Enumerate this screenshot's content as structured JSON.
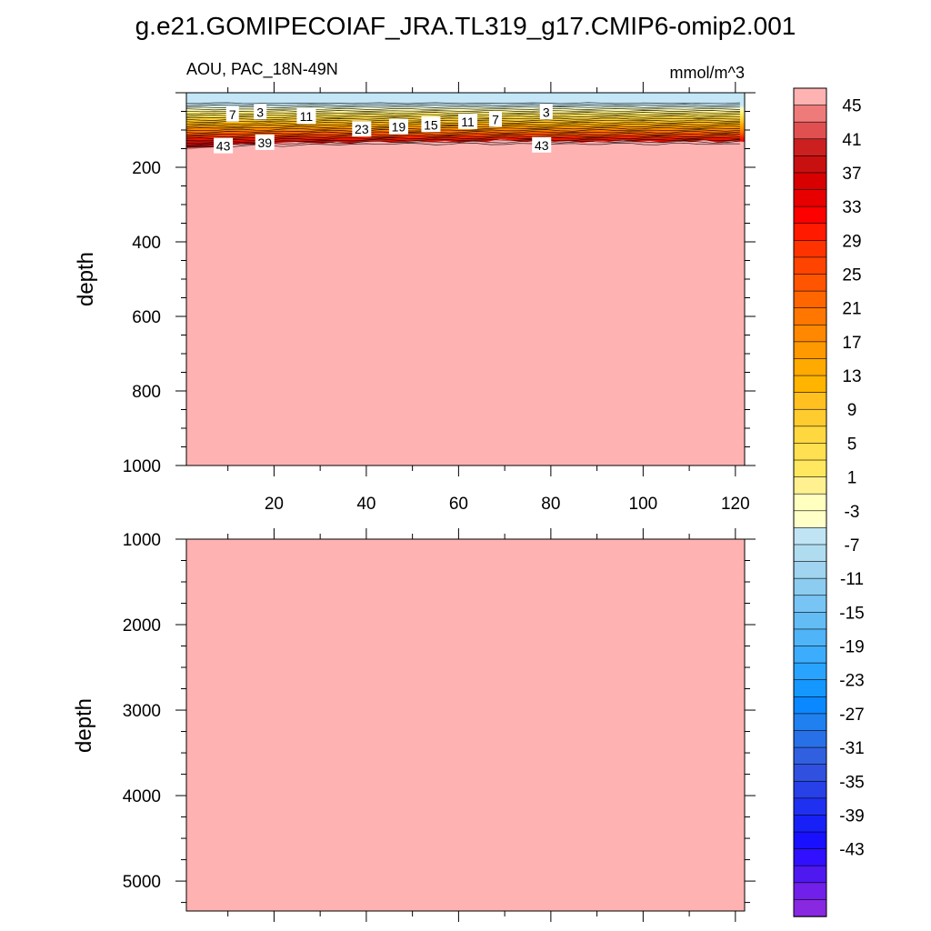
{
  "page_title": "g.e21.GOMIPECOIAF_JRA.TL319_g17.CMIP6-omip2.001",
  "chart_data": [
    {
      "type": "heatmap",
      "panel": "upper",
      "title_left": "AOU, PAC_18N-49N",
      "title_right": "mmol/m^3",
      "ylabel": "depth",
      "xlim": [
        1,
        122
      ],
      "ylim": [
        1000,
        0
      ],
      "x_ticks": [
        20,
        40,
        60,
        80,
        100,
        120
      ],
      "y_ticks": [
        200,
        400,
        600,
        800,
        1000
      ],
      "deep_value_color": "#ffb2b2",
      "contour_labels": [
        {
          "text": "7",
          "x": 11,
          "depth": 58
        },
        {
          "text": "3",
          "x": 17,
          "depth": 52
        },
        {
          "text": "11",
          "x": 27,
          "depth": 64
        },
        {
          "text": "43",
          "x": 9,
          "depth": 143
        },
        {
          "text": "39",
          "x": 18,
          "depth": 134
        },
        {
          "text": "23",
          "x": 39,
          "depth": 98
        },
        {
          "text": "19",
          "x": 47,
          "depth": 92
        },
        {
          "text": "15",
          "x": 54,
          "depth": 86
        },
        {
          "text": "11",
          "x": 62,
          "depth": 78
        },
        {
          "text": "7",
          "x": 68,
          "depth": 72
        },
        {
          "text": "3",
          "x": 79,
          "depth": 52
        },
        {
          "text": "43",
          "x": 78,
          "depth": 141
        }
      ]
    },
    {
      "type": "heatmap",
      "panel": "lower",
      "ylabel": "depth",
      "xlim": [
        1,
        122
      ],
      "ylim": [
        5350,
        1000
      ],
      "y_ticks": [
        1000,
        2000,
        3000,
        4000,
        5000
      ],
      "deep_value_color": "#ffb2b2"
    }
  ],
  "colorbar": {
    "labels": [
      "45",
      "41",
      "37",
      "33",
      "29",
      "25",
      "21",
      "17",
      "13",
      "9",
      "5",
      "1",
      "-3",
      "-7",
      "-11",
      "-15",
      "-19",
      "-23",
      "-27",
      "-31",
      "-35",
      "-39",
      "-43"
    ],
    "colors": [
      "#ffb2b2",
      "#ef7a7a",
      "#e05050",
      "#cc2020",
      "#c81010",
      "#d80000",
      "#e80000",
      "#ff0000",
      "#ff1a00",
      "#ff3300",
      "#ff4400",
      "#ff5500",
      "#ff6600",
      "#ff7700",
      "#ff8800",
      "#ff9900",
      "#ffaa00",
      "#ffb400",
      "#ffc020",
      "#ffcc30",
      "#ffd840",
      "#ffe050",
      "#ffe860",
      "#fff090",
      "#ffffc0",
      "#ffffc8",
      "#c0e4f4",
      "#b0dcf0",
      "#a0d4f0",
      "#8cccf0",
      "#78c4f4",
      "#64bcf4",
      "#50b4f8",
      "#3cacfc",
      "#28a4ff",
      "#1498ff",
      "#0a88ff",
      "#2080f0",
      "#2870e8",
      "#3060e0",
      "#3050e0",
      "#2840e8",
      "#2030f0",
      "#1820f8",
      "#1810ff",
      "#3010ff",
      "#5018f0",
      "#7020e8",
      "#8828e0"
    ]
  }
}
